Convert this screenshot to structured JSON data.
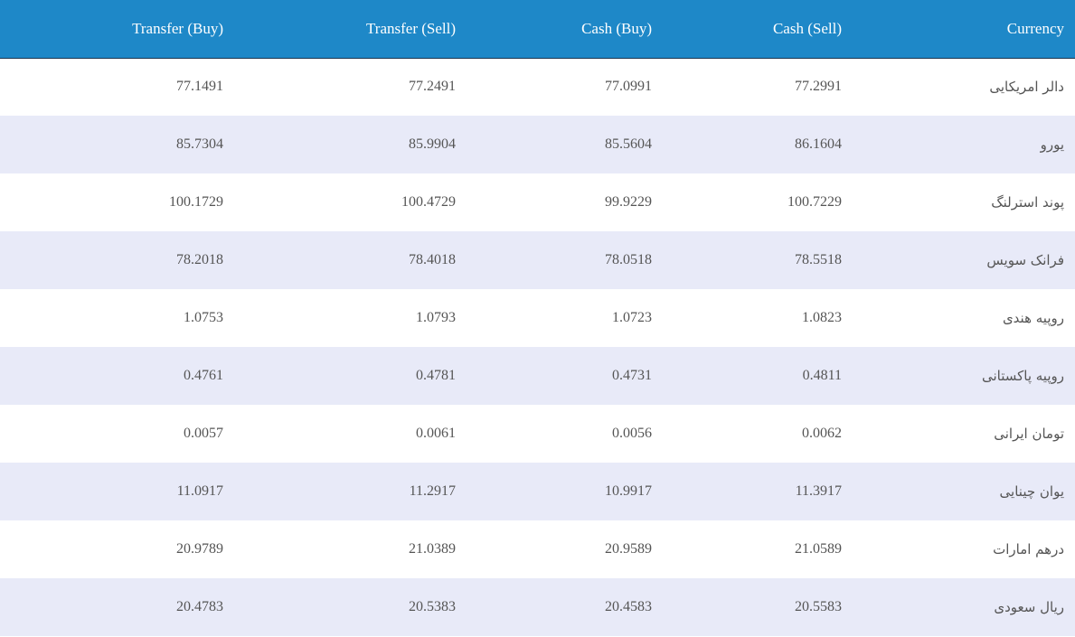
{
  "table": {
    "header": [
      "Transfer (Buy)",
      "Transfer (Sell)",
      "Cash (Buy)",
      "Cash (Sell)",
      "Currency"
    ],
    "rows": [
      [
        "77.1491",
        "77.2491",
        "77.0991",
        "77.2991",
        "دالر امریکایی"
      ],
      [
        "85.7304",
        "85.9904",
        "85.5604",
        "86.1604",
        "یورو"
      ],
      [
        "100.1729",
        "100.4729",
        "99.9229",
        "100.7229",
        "پوند استرلنگ"
      ],
      [
        "78.2018",
        "78.4018",
        "78.0518",
        "78.5518",
        "فرانک سویس"
      ],
      [
        "1.0753",
        "1.0793",
        "1.0723",
        "1.0823",
        "روپیه هندی"
      ],
      [
        "0.4761",
        "0.4781",
        "0.4731",
        "0.4811",
        "روپیه پاکستانی"
      ],
      [
        "0.0057",
        "0.0061",
        "0.0056",
        "0.0062",
        "تومان ایرانی"
      ],
      [
        "11.0917",
        "11.2917",
        "10.9917",
        "11.3917",
        "یوان چینایی"
      ],
      [
        "20.9789",
        "21.0389",
        "20.9589",
        "21.0589",
        "درهم امارات"
      ],
      [
        "20.4783",
        "20.5383",
        "20.4583",
        "20.5583",
        "ریال سعودی"
      ]
    ]
  }
}
